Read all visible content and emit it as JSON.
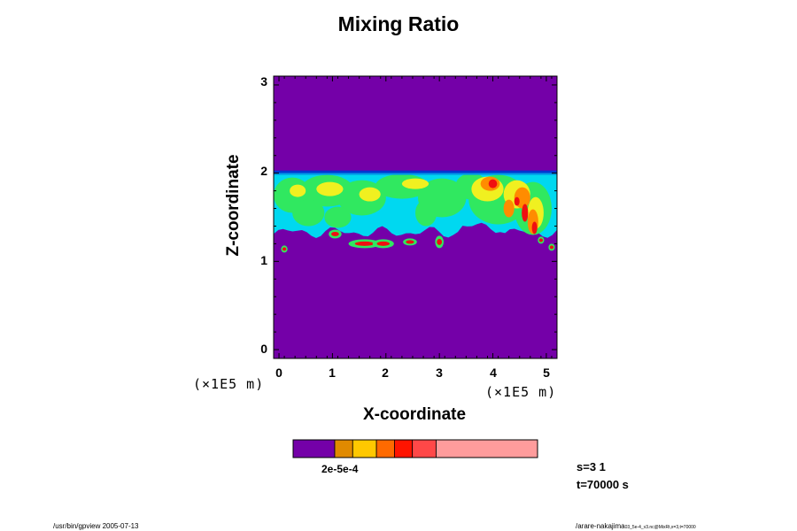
{
  "chart_data": {
    "type": "heatmap",
    "title": "Mixing Ratio",
    "xlabel": "X-coordinate",
    "ylabel": "Z-coordinate",
    "x_unit": "(×1E5 m)",
    "z_unit": "(×1E5 m)",
    "xlim": [
      -0.1,
      5.2
    ],
    "ylim": [
      -0.1,
      3.1
    ],
    "x_ticks": [
      "0",
      "1",
      "2",
      "3",
      "4",
      "5"
    ],
    "y_ticks": [
      "0",
      "1",
      "2",
      "3"
    ],
    "layer_top": 2.02,
    "layer_bottom": 1.33,
    "colorbar": {
      "label": "2e-5e-4",
      "levels": [
        {
          "value": 0.0,
          "color": "#7400a8"
        },
        {
          "value": 1e-05,
          "color": "#e08a00"
        },
        {
          "value": 2e-05,
          "color": "#ffc800"
        },
        {
          "value": 5e-05,
          "color": "#ff6a00"
        },
        {
          "value": 0.0001,
          "color": "#ff1400"
        },
        {
          "value": 0.0002,
          "color": "#ff4848"
        },
        {
          "value": 0.0005,
          "color": "#ff9c9c"
        }
      ]
    },
    "field_colors": {
      "background": "#7400a8",
      "cyan": "#00d8f0",
      "green": "#30e860",
      "yellow": "#f0f020",
      "orange": "#ff8c00",
      "red": "#f01010",
      "blue": "#0038d0"
    }
  },
  "info": {
    "line1": "s=3 1",
    "line2": "t=70000 s"
  },
  "footer": {
    "left": "/usr/bin/gpview 2005-07-13",
    "right_main": "/arare-nakajima",
    "right_small": "03_5e-4_v3.nc@MixRt,x=3,t=70000"
  }
}
